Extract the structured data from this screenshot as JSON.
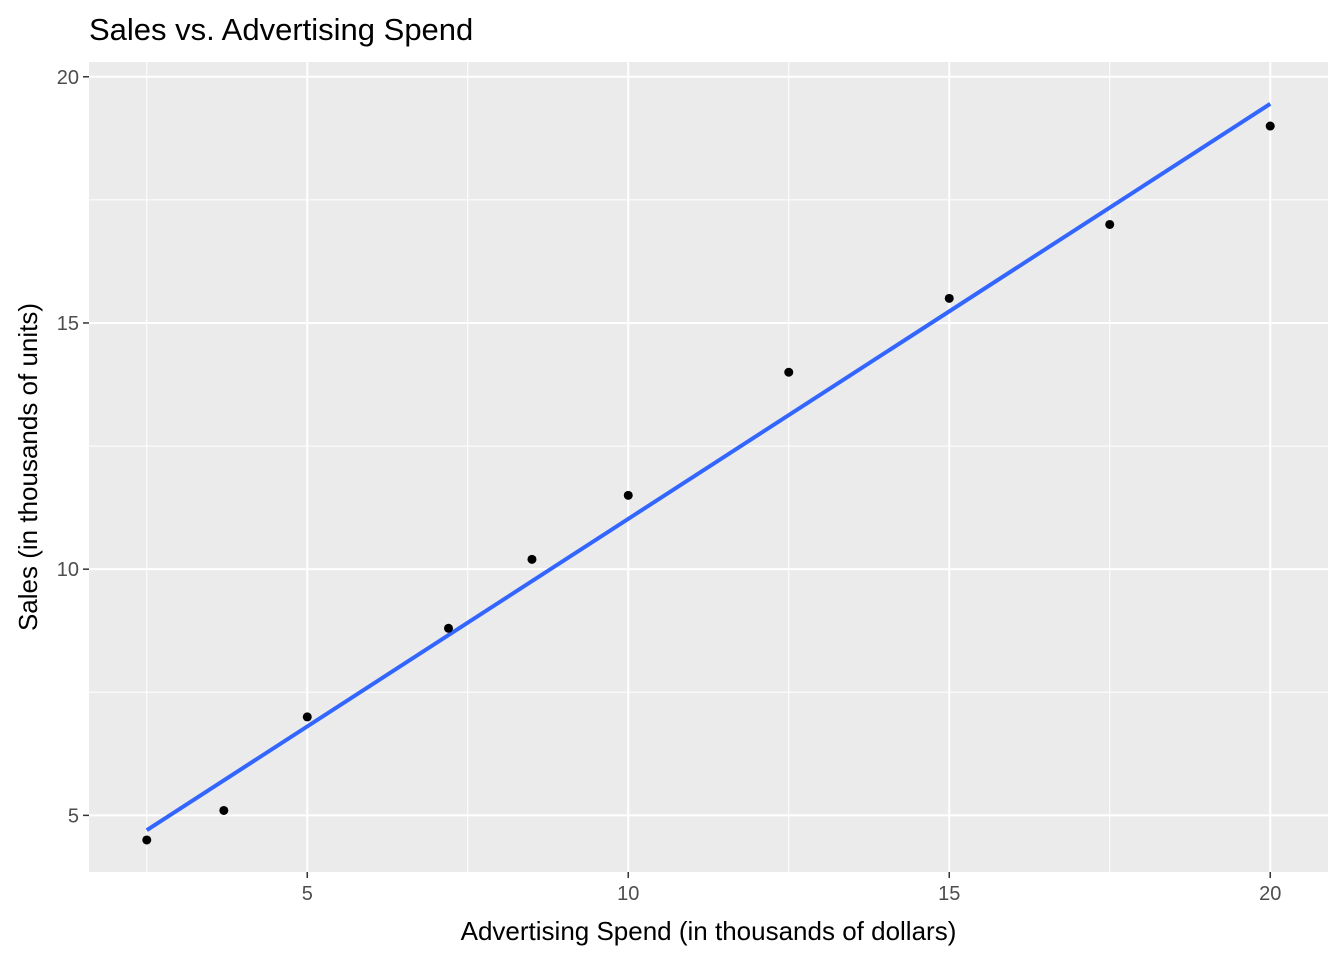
{
  "chart_data": {
    "type": "scatter",
    "title": "Sales vs. Advertising Spend",
    "xlabel": "Advertising Spend (in thousands of dollars)",
    "ylabel": "Sales (in thousands of units)",
    "xlim": [
      1.6,
      20.9
    ],
    "ylim": [
      3.85,
      20.3
    ],
    "xticks": [
      5,
      10,
      15,
      20
    ],
    "yticks": [
      5,
      10,
      15,
      20
    ],
    "grid": true,
    "legend": "none",
    "colors": {
      "panel": "#EBEBEB",
      "gridline": "#FFFFFF",
      "points": "#000000",
      "fit_line": "#3366FF",
      "tick_label": "#4D4D4D",
      "tick_mark": "#333333"
    },
    "series": [
      {
        "x": [
          2.5,
          3.7,
          5.0,
          7.2,
          8.5,
          10.0,
          12.5,
          15.0,
          17.5,
          20.0
        ],
        "y": [
          4.5,
          5.1,
          7.0,
          8.8,
          10.2,
          11.5,
          14.0,
          15.5,
          17.0,
          19.0
        ]
      }
    ],
    "fit_line": {
      "x": [
        2.5,
        20.0
      ],
      "y": [
        4.7,
        19.45
      ]
    }
  }
}
